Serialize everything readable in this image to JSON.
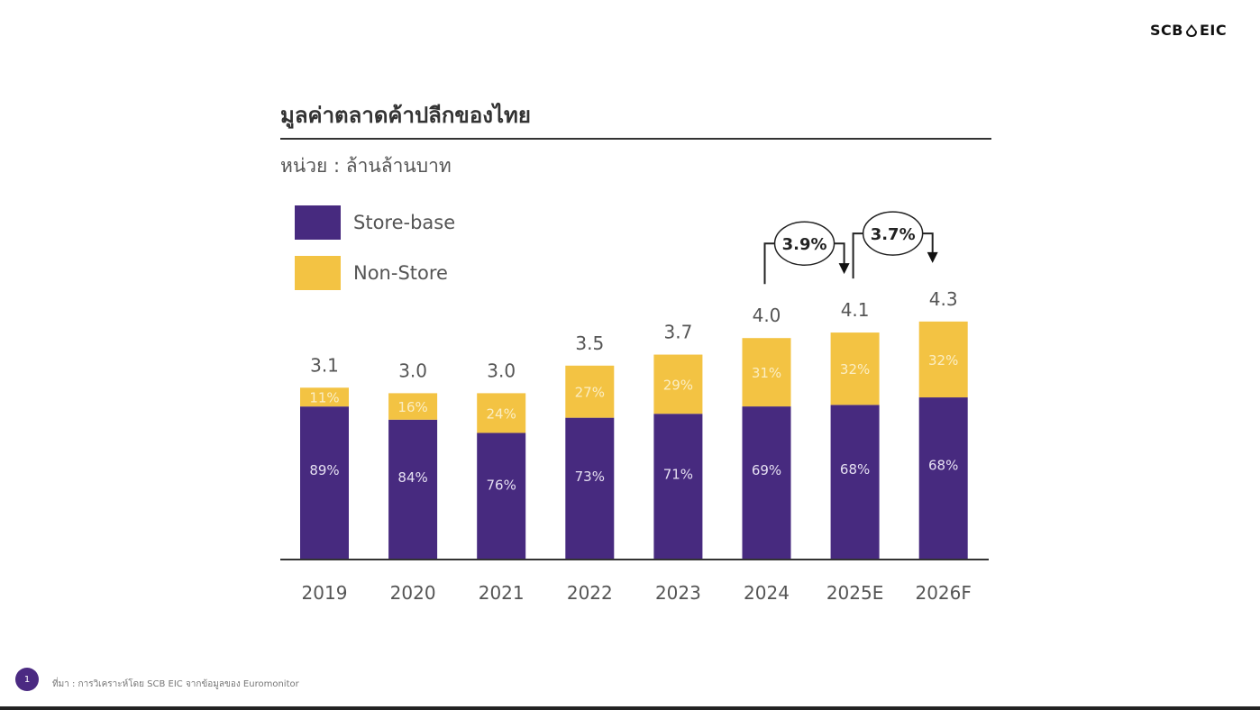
{
  "logo": {
    "left": "SCB",
    "right": "EIC",
    "icon": "scb-home-icon"
  },
  "footer": {
    "page_number": "1",
    "source": "ที่มา : การวิเคราะห์โดย SCB EIC จากข้อมูลของ Euromonitor"
  },
  "colors": {
    "store_base": "#472A7F",
    "non_store": "#F3C343",
    "text": "#555555",
    "axis": "#333333"
  },
  "chart_data": {
    "type": "bar",
    "stacked": true,
    "title": "มูลค่าตลาดค้าปลีกของไทย",
    "subtitle": "หน่วย : ล้านล้านบาท",
    "xlabel": "",
    "ylabel": "",
    "categories": [
      "2019",
      "2020",
      "2021",
      "2022",
      "2023",
      "2024",
      "2025E",
      "2026F"
    ],
    "totals": [
      3.1,
      3.0,
      3.0,
      3.5,
      3.7,
      4.0,
      4.1,
      4.3
    ],
    "total_labels": [
      "3.1",
      "3.0",
      "3.0",
      "3.5",
      "3.7",
      "4.0",
      "4.1",
      "4.3"
    ],
    "series": [
      {
        "name": "Store-base",
        "share_pct": [
          89,
          84,
          76,
          73,
          71,
          69,
          68,
          68
        ],
        "labels": [
          "89%",
          "84%",
          "76%",
          "73%",
          "71%",
          "69%",
          "68%",
          "68%"
        ]
      },
      {
        "name": "Non-Store",
        "share_pct": [
          11,
          16,
          24,
          27,
          29,
          31,
          32,
          32
        ],
        "labels": [
          "11%",
          "16%",
          "24%",
          "27%",
          "29%",
          "31%",
          "32%",
          "32%"
        ]
      }
    ],
    "legend": {
      "placement": "top-left",
      "entries": [
        "Store-base",
        "Non-Store"
      ]
    },
    "annotations": [
      {
        "text": "3.9%",
        "from": "2024",
        "to": "2025E",
        "meaning": "growth"
      },
      {
        "text": "3.7%",
        "from": "2025E",
        "to": "2026F",
        "meaning": "growth"
      }
    ],
    "grid": false,
    "ylim": [
      0,
      5
    ]
  }
}
